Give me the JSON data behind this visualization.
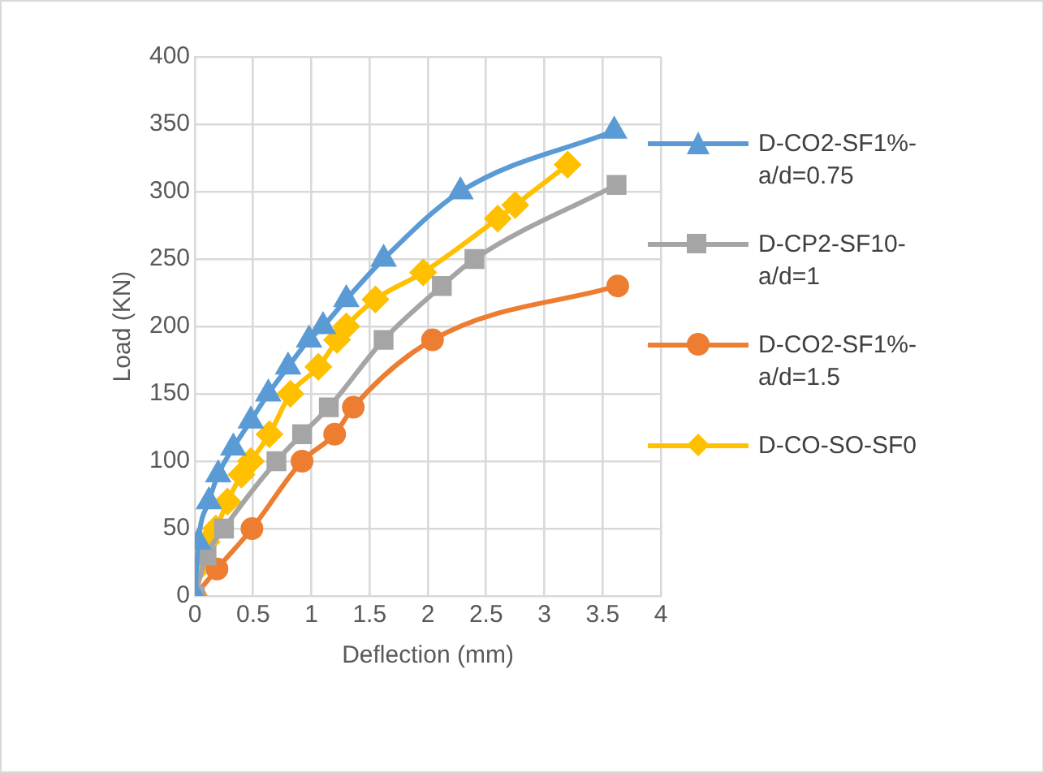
{
  "chart_data": {
    "type": "line",
    "xlabel": "Deflection (mm)",
    "ylabel": "Load (KN)",
    "xlim": [
      0,
      4
    ],
    "xticks": [
      0,
      0.5,
      1,
      1.5,
      2,
      2.5,
      3,
      3.5,
      4
    ],
    "ylim": [
      0,
      400
    ],
    "yticks": [
      0,
      50,
      100,
      150,
      200,
      250,
      300,
      350,
      400
    ],
    "grid": true,
    "legend": "right",
    "series": [
      {
        "name": "D-CO2-SF1%-a/d=0.75",
        "color": "#5b9bd5",
        "marker": "triangle",
        "x": [
          0,
          0.03,
          0.12,
          0.2,
          0.33,
          0.48,
          0.63,
          0.8,
          0.98,
          1.1,
          1.3,
          1.62,
          2.28,
          3.6
        ],
        "values": [
          0,
          40,
          70,
          90,
          110,
          130,
          150,
          170,
          190,
          200,
          220,
          250,
          300,
          345
        ]
      },
      {
        "name": "D-CP2-SF10-a/d=1",
        "color": "#a5a5a5",
        "marker": "square",
        "x": [
          0,
          0.1,
          0.25,
          0.7,
          0.92,
          1.15,
          1.62,
          2.12,
          2.4,
          3.62
        ],
        "values": [
          0,
          30,
          50,
          100,
          120,
          140,
          190,
          230,
          250,
          305
        ]
      },
      {
        "name": "D-CO2-SF1%-a/d=1.5",
        "color": "#ed7d31",
        "marker": "circle",
        "x": [
          0,
          0.19,
          0.49,
          0.92,
          1.2,
          1.36,
          2.04,
          3.63
        ],
        "values": [
          0,
          20,
          50,
          100,
          120,
          140,
          190,
          230
        ]
      },
      {
        "name": "D-CO-SO-SF0",
        "color": "#ffc000",
        "marker": "diamond",
        "x": [
          0,
          0.02,
          0.1,
          0.18,
          0.28,
          0.4,
          0.48,
          0.64,
          0.82,
          1.06,
          1.22,
          1.3,
          1.55,
          1.96,
          2.6,
          2.75,
          3.2
        ],
        "values": [
          0,
          20,
          40,
          50,
          70,
          90,
          100,
          120,
          150,
          170,
          190,
          200,
          220,
          240,
          280,
          290,
          320
        ]
      }
    ]
  }
}
